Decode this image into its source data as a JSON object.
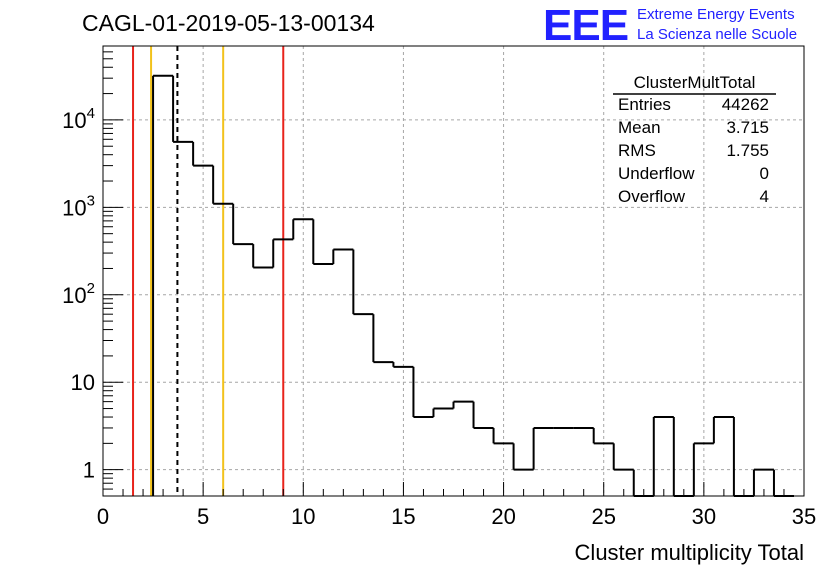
{
  "chart_data": {
    "type": "bar",
    "title": "CAGL-01-2019-05-13-00134",
    "xlabel": "Cluster multiplicity Total",
    "ylabel": "",
    "xlim": [
      0,
      35
    ],
    "ylim": [
      0.5,
      70000
    ],
    "yscale": "log",
    "grid": true,
    "bin_width": 1,
    "bins": [
      {
        "x0": 2.5,
        "value": 32000
      },
      {
        "x0": 3.5,
        "value": 5600
      },
      {
        "x0": 4.5,
        "value": 3000
      },
      {
        "x0": 5.5,
        "value": 1100
      },
      {
        "x0": 6.5,
        "value": 380
      },
      {
        "x0": 7.5,
        "value": 205
      },
      {
        "x0": 8.5,
        "value": 430
      },
      {
        "x0": 9.5,
        "value": 730
      },
      {
        "x0": 10.5,
        "value": 225
      },
      {
        "x0": 11.5,
        "value": 330
      },
      {
        "x0": 12.5,
        "value": 60
      },
      {
        "x0": 13.5,
        "value": 17
      },
      {
        "x0": 14.5,
        "value": 15
      },
      {
        "x0": 15.5,
        "value": 4
      },
      {
        "x0": 16.5,
        "value": 5
      },
      {
        "x0": 17.5,
        "value": 6
      },
      {
        "x0": 18.5,
        "value": 3
      },
      {
        "x0": 19.5,
        "value": 2
      },
      {
        "x0": 20.5,
        "value": 1
      },
      {
        "x0": 21.5,
        "value": 3
      },
      {
        "x0": 22.5,
        "value": 3
      },
      {
        "x0": 23.5,
        "value": 3
      },
      {
        "x0": 24.5,
        "value": 2
      },
      {
        "x0": 25.5,
        "value": 1
      },
      {
        "x0": 26.5,
        "value": 0
      },
      {
        "x0": 27.5,
        "value": 4
      },
      {
        "x0": 28.5,
        "value": 0
      },
      {
        "x0": 29.5,
        "value": 2
      },
      {
        "x0": 30.5,
        "value": 4
      },
      {
        "x0": 31.5,
        "value": 0
      },
      {
        "x0": 32.5,
        "value": 1
      },
      {
        "x0": 33.5,
        "value": 0
      }
    ],
    "x_ticks": [
      0,
      5,
      10,
      15,
      20,
      25,
      30,
      35
    ],
    "y_ticks": [
      {
        "value": 1,
        "base": "1",
        "exp": ""
      },
      {
        "value": 10,
        "base": "10",
        "exp": ""
      },
      {
        "value": 100,
        "base": "10",
        "exp": "2"
      },
      {
        "value": 1000,
        "base": "10",
        "exp": "3"
      },
      {
        "value": 10000,
        "base": "10",
        "exp": "4"
      }
    ],
    "markers": [
      {
        "x": 1.5,
        "color": "#e8231b",
        "style": "solid"
      },
      {
        "x": 2.4,
        "color": "#f2c21b",
        "style": "solid"
      },
      {
        "x": 3.715,
        "color": "#000000",
        "style": "dashed"
      },
      {
        "x": 6.0,
        "color": "#f2c21b",
        "style": "solid"
      },
      {
        "x": 9.0,
        "color": "#e8231b",
        "style": "solid"
      }
    ],
    "stats": {
      "name": "ClusterMultTotal",
      "rows": [
        {
          "label": "Entries",
          "value": "44262"
        },
        {
          "label": "Mean",
          "value": "3.715"
        },
        {
          "label": "RMS",
          "value": "1.755"
        },
        {
          "label": "Underflow",
          "value": "0"
        },
        {
          "label": "Overflow",
          "value": "4"
        }
      ]
    }
  },
  "logo": {
    "mark": "EEE",
    "line1": "Extreme Energy Events",
    "line2": "La Scienza nelle Scuole"
  }
}
